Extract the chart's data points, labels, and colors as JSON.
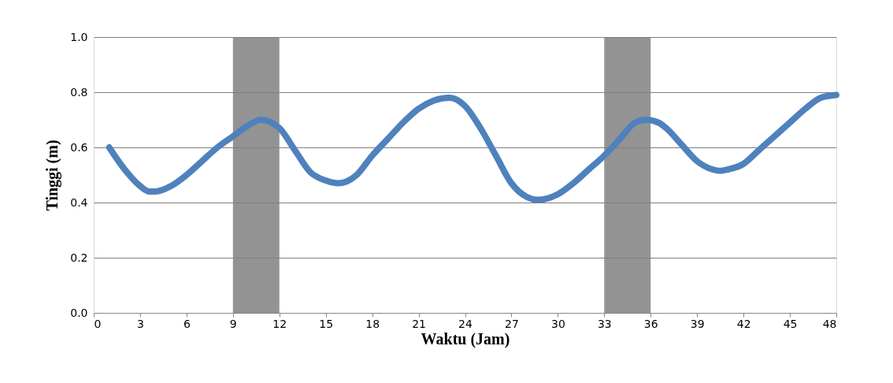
{
  "chart_data": {
    "type": "line",
    "xlabel": "Waktu (Jam)",
    "ylabel": "Tinggi (m)",
    "xlim": [
      0,
      48
    ],
    "xticks": [
      0,
      3,
      6,
      9,
      12,
      15,
      18,
      21,
      24,
      27,
      30,
      33,
      36,
      39,
      42,
      45,
      48
    ],
    "ylim": [
      0,
      1
    ],
    "yticks": [
      {
        "value": 0,
        "label": "0.0"
      },
      {
        "value": 0.2,
        "label": "0.2"
      },
      {
        "value": 0.4,
        "label": "0.4"
      },
      {
        "value": 0.6,
        "label": "0.6"
      },
      {
        "value": 0.8,
        "label": "0.8"
      },
      {
        "value": 1,
        "label": "1.0"
      }
    ],
    "grid": "y",
    "line_style": "solid",
    "bands": [
      {
        "axis": "x",
        "from": 9,
        "to": 12,
        "color": "#808080"
      },
      {
        "axis": "x",
        "from": 33,
        "to": 36,
        "color": "#808080"
      }
    ],
    "series": [
      {
        "color": "#4f81bd",
        "x": [
          1,
          2,
          3,
          3.6,
          4,
          5,
          6,
          7,
          8,
          9,
          10,
          10.8,
          12,
          13,
          14,
          15,
          15.8,
          17,
          18,
          19,
          20,
          21,
          22,
          23,
          24,
          25,
          26,
          27,
          28,
          28.7,
          30,
          31,
          32,
          33,
          34,
          35,
          35.7,
          36.5,
          37,
          38,
          39,
          40,
          40.5,
          41,
          42,
          43,
          44,
          45,
          46,
          47,
          48
        ],
        "values": [
          0.6,
          0.52,
          0.46,
          0.44,
          0.44,
          0.46,
          0.5,
          0.55,
          0.6,
          0.64,
          0.68,
          0.7,
          0.67,
          0.59,
          0.51,
          0.48,
          0.47,
          0.5,
          0.57,
          0.63,
          0.69,
          0.74,
          0.77,
          0.78,
          0.75,
          0.67,
          0.57,
          0.47,
          0.42,
          0.41,
          0.43,
          0.47,
          0.52,
          0.57,
          0.63,
          0.69,
          0.7,
          0.69,
          0.67,
          0.61,
          0.55,
          0.52,
          0.515,
          0.52,
          0.54,
          0.59,
          0.64,
          0.69,
          0.74,
          0.78,
          0.79
        ]
      }
    ]
  }
}
